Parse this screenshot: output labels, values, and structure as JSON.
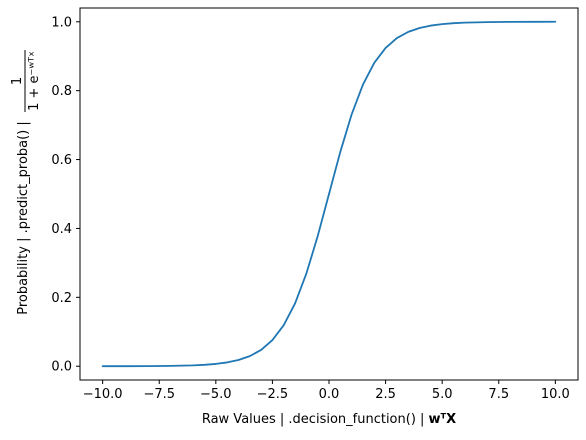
{
  "chart_data": {
    "type": "line",
    "title": "",
    "xlabel": "Raw Values | .decision_function() | ",
    "xlabel_math": "wᵀX",
    "ylabel": "Probability | .predict_proba() | ",
    "ylabel_math_numerator": "1",
    "ylabel_math_denominator": "1 + e⁻ʷᵀˣ",
    "xlim": [
      -11.0,
      11.0
    ],
    "ylim": [
      -0.04,
      1.04
    ],
    "xticks": [
      -10.0,
      -7.5,
      -5.0,
      -2.5,
      0.0,
      2.5,
      5.0,
      7.5,
      10.0
    ],
    "xtick_labels": [
      "−10.0",
      "−7.5",
      "−5.0",
      "−2.5",
      "0.0",
      "2.5",
      "5.0",
      "7.5",
      "10.0"
    ],
    "yticks": [
      0.0,
      0.2,
      0.4,
      0.6,
      0.8,
      1.0
    ],
    "ytick_labels": [
      "0.0",
      "0.2",
      "0.4",
      "0.6",
      "0.8",
      "1.0"
    ],
    "grid": false,
    "series": [
      {
        "color": "#1f77b4",
        "x": [
          -10.0,
          -9.0,
          -8.0,
          -7.0,
          -6.0,
          -5.5,
          -5.0,
          -4.5,
          -4.0,
          -3.5,
          -3.0,
          -2.5,
          -2.0,
          -1.5,
          -1.0,
          -0.5,
          0.0,
          0.5,
          1.0,
          1.5,
          2.0,
          2.5,
          3.0,
          3.5,
          4.0,
          4.5,
          5.0,
          5.5,
          6.0,
          7.0,
          8.0,
          9.0,
          10.0
        ],
        "y": [
          4.54e-05,
          0.000123,
          0.000335,
          0.000911,
          0.00247,
          0.00407,
          0.00669,
          0.011,
          0.018,
          0.0293,
          0.0474,
          0.0759,
          0.1192,
          0.1824,
          0.2689,
          0.3775,
          0.5,
          0.6225,
          0.7311,
          0.8176,
          0.8808,
          0.9241,
          0.9526,
          0.9707,
          0.982,
          0.989,
          0.9933,
          0.9959,
          0.9975,
          0.9991,
          0.9997,
          0.9999,
          1.0
        ]
      }
    ]
  }
}
